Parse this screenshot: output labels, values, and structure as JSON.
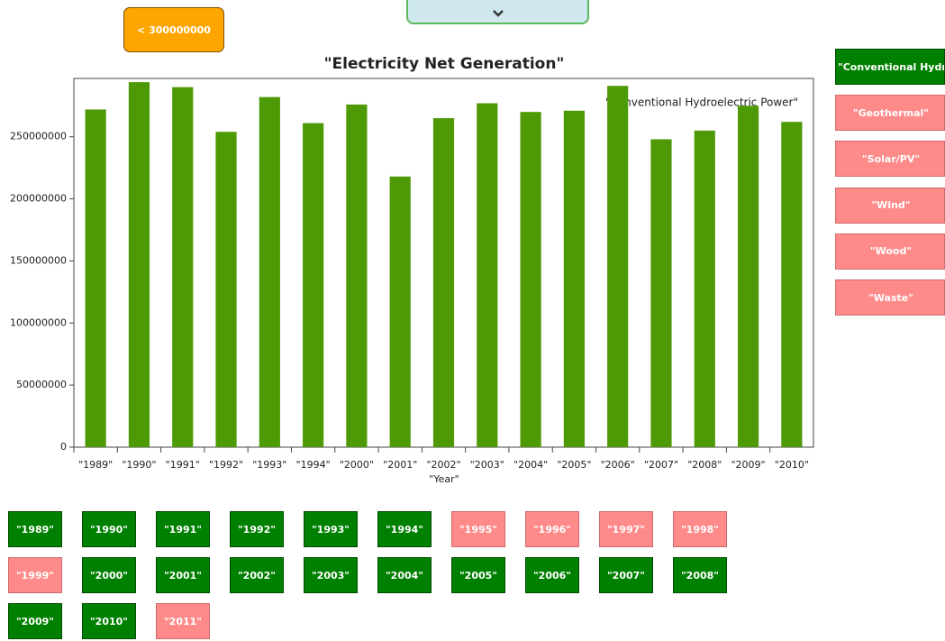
{
  "chart_data": {
    "type": "bar",
    "title": "\"Electricity Net Generation\"",
    "x_label": "\"Year\"",
    "legend_label": "\"Conventional Hydroelectric Power\"",
    "categories": [
      "\"1989\"",
      "\"1990\"",
      "\"1991\"",
      "\"1992\"",
      "\"1993\"",
      "\"1994\"",
      "\"2000\"",
      "\"2001\"",
      "\"2002\"",
      "\"2003\"",
      "\"2004\"",
      "\"2005\"",
      "\"2006\"",
      "\"2007\"",
      "\"2008\"",
      "\"2009\"",
      "\"2010\""
    ],
    "values": [
      272000000,
      294000000,
      290000000,
      254000000,
      282000000,
      261000000,
      276000000,
      218000000,
      265000000,
      277000000,
      270000000,
      271000000,
      291000000,
      248000000,
      255000000,
      275000000,
      262000000
    ],
    "color": "#4e9a06",
    "ylim": [
      0,
      297000000
    ],
    "yticks": [
      0,
      50000000,
      100000000,
      150000000,
      200000000,
      250000000
    ]
  },
  "filter_button": "< 300000000",
  "source_buttons": [
    {
      "label": "\"Conventional Hydroelectric Power\"",
      "selected": true
    },
    {
      "label": "\"Geothermal\"",
      "selected": false
    },
    {
      "label": "\"Solar/PV\"",
      "selected": false
    },
    {
      "label": "\"Wind\"",
      "selected": false
    },
    {
      "label": "\"Wood\"",
      "selected": false
    },
    {
      "label": "\"Waste\"",
      "selected": false
    }
  ],
  "year_buttons": [
    {
      "label": "\"1989\"",
      "selected": true
    },
    {
      "label": "\"1990\"",
      "selected": true
    },
    {
      "label": "\"1991\"",
      "selected": true
    },
    {
      "label": "\"1992\"",
      "selected": true
    },
    {
      "label": "\"1993\"",
      "selected": true
    },
    {
      "label": "\"1994\"",
      "selected": true
    },
    {
      "label": "\"1995\"",
      "selected": false
    },
    {
      "label": "\"1996\"",
      "selected": false
    },
    {
      "label": "\"1997\"",
      "selected": false
    },
    {
      "label": "\"1998\"",
      "selected": false
    },
    {
      "label": "\"1999\"",
      "selected": false
    },
    {
      "label": "\"2000\"",
      "selected": true
    },
    {
      "label": "\"2001\"",
      "selected": true
    },
    {
      "label": "\"2002\"",
      "selected": true
    },
    {
      "label": "\"2003\"",
      "selected": true
    },
    {
      "label": "\"2004\"",
      "selected": true
    },
    {
      "label": "\"2005\"",
      "selected": true
    },
    {
      "label": "\"2006\"",
      "selected": true
    },
    {
      "label": "\"2007\"",
      "selected": true
    },
    {
      "label": "\"2008\"",
      "selected": true
    },
    {
      "label": "\"2009\"",
      "selected": true
    },
    {
      "label": "\"2010\"",
      "selected": true
    },
    {
      "label": "\"2011\"",
      "selected": false
    }
  ]
}
